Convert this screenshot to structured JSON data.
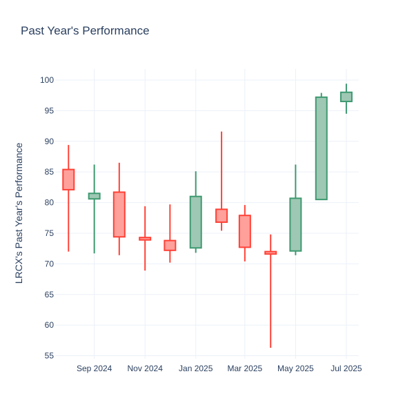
{
  "chart_data": {
    "type": "candlestick",
    "title": "Past Year's Performance",
    "xlabel": "",
    "ylabel": "LRCX's Past Year's Performance",
    "ylim": [
      54.5,
      101.8
    ],
    "yticks": [
      55,
      60,
      65,
      70,
      75,
      80,
      85,
      90,
      95,
      100
    ],
    "xlim": [
      "2024-07-16",
      "2025-07-16"
    ],
    "xticks": [
      {
        "date": "2024-09-01",
        "label": "Sep 2024"
      },
      {
        "date": "2024-11-01",
        "label": "Nov 2024"
      },
      {
        "date": "2025-01-01",
        "label": "Jan 2025"
      },
      {
        "date": "2025-03-01",
        "label": "Mar 2025"
      },
      {
        "date": "2025-05-01",
        "label": "May 2025"
      },
      {
        "date": "2025-07-01",
        "label": "Jul 2025"
      }
    ],
    "grid": true,
    "colors": {
      "increasing": "#3d9970",
      "decreasing": "#ff4136",
      "increasing_fill": "#9ec8b3",
      "decreasing_fill": "#ffa09b"
    },
    "candles": [
      {
        "date": "2024-08-01",
        "open": 85.4,
        "high": 89.4,
        "low": 72.0,
        "close": 82.1
      },
      {
        "date": "2024-09-01",
        "open": 80.6,
        "high": 86.2,
        "low": 71.7,
        "close": 81.5
      },
      {
        "date": "2024-10-01",
        "open": 81.7,
        "high": 86.5,
        "low": 71.4,
        "close": 74.4
      },
      {
        "date": "2024-11-01",
        "open": 74.3,
        "high": 79.4,
        "low": 68.9,
        "close": 73.9
      },
      {
        "date": "2024-12-01",
        "open": 73.8,
        "high": 79.7,
        "low": 70.2,
        "close": 72.2
      },
      {
        "date": "2025-01-01",
        "open": 72.6,
        "high": 85.1,
        "low": 71.8,
        "close": 81.0
      },
      {
        "date": "2025-02-01",
        "open": 78.9,
        "high": 91.6,
        "low": 75.4,
        "close": 76.8
      },
      {
        "date": "2025-03-01",
        "open": 77.9,
        "high": 79.6,
        "low": 70.4,
        "close": 72.7
      },
      {
        "date": "2025-04-01",
        "open": 72.0,
        "high": 74.8,
        "low": 56.3,
        "close": 71.6
      },
      {
        "date": "2025-05-01",
        "open": 72.1,
        "high": 86.2,
        "low": 71.4,
        "close": 80.7
      },
      {
        "date": "2025-06-01",
        "open": 80.5,
        "high": 97.9,
        "low": 80.5,
        "close": 97.2
      },
      {
        "date": "2025-07-01",
        "open": 96.5,
        "high": 99.4,
        "low": 94.5,
        "close": 98.0
      }
    ]
  }
}
